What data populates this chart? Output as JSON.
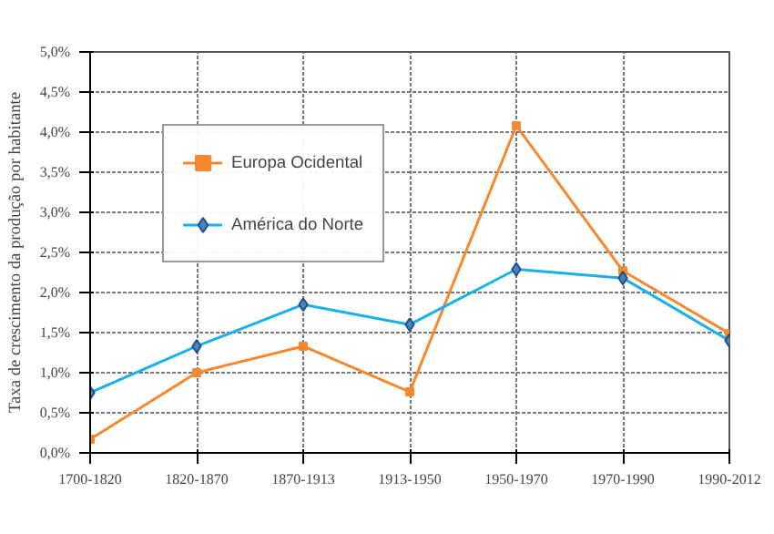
{
  "chart_data": {
    "type": "line",
    "ylabel": "Taxa de crescimento da produção por habitante",
    "categories": [
      "1700-1820",
      "1820-1870",
      "1870-1913",
      "1913-1950",
      "1950-1970",
      "1970-1990",
      "1990-2012"
    ],
    "series": [
      {
        "name": "Europa Ocidental",
        "color": "#f7882f",
        "marker": "square",
        "values": [
          0.17,
          1.0,
          1.33,
          0.76,
          4.08,
          2.27,
          1.49
        ]
      },
      {
        "name": "América do Norte",
        "color": "#1ab0e8",
        "marker": "diamond",
        "values": [
          0.75,
          1.33,
          1.85,
          1.6,
          2.29,
          2.18,
          1.4
        ]
      }
    ],
    "ylim": [
      0,
      5
    ],
    "yticks": [
      {
        "value": 0,
        "label": "0,0%"
      },
      {
        "value": 0.5,
        "label": "0,5%"
      },
      {
        "value": 1,
        "label": "1,0%"
      },
      {
        "value": 1.5,
        "label": "1,5%"
      },
      {
        "value": 2,
        "label": "2,0%"
      },
      {
        "value": 2.5,
        "label": "2,5%"
      },
      {
        "value": 3,
        "label": "3,0%"
      },
      {
        "value": 3.5,
        "label": "3,5%"
      },
      {
        "value": 4,
        "label": "4,0%"
      },
      {
        "value": 4.5,
        "label": "4,5%"
      },
      {
        "value": 5,
        "label": "5,0%"
      }
    ],
    "grid": true,
    "legend": "top left",
    "line_style": "solid"
  }
}
